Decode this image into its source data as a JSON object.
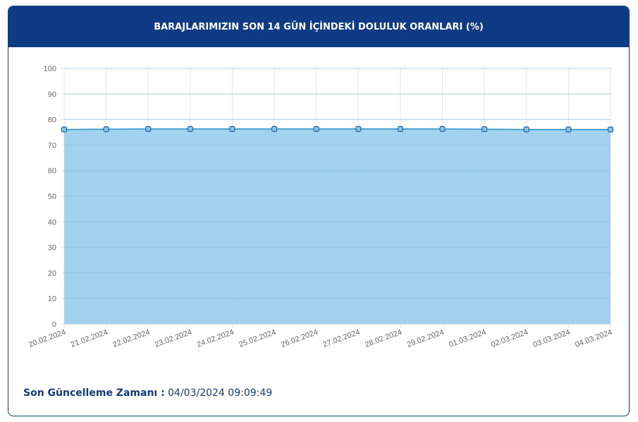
{
  "header": {
    "title": "BARAJLARIMIZIN SON 14 GÜN İÇİNDEKİ DOLULUK ORANLARI (%)"
  },
  "chart_data": {
    "type": "area",
    "categories": [
      "20.02.2024",
      "21.02.2024",
      "22.02.2024",
      "23.02.2024",
      "24.02.2024",
      "25.02.2024",
      "26.02.2024",
      "27.02.2024",
      "28.02.2024",
      "29.02.2024",
      "01.03.2024",
      "02.03.2024",
      "03.03.2024",
      "04.03.2024"
    ],
    "values": [
      76.1,
      76.2,
      76.3,
      76.3,
      76.3,
      76.3,
      76.3,
      76.3,
      76.3,
      76.3,
      76.2,
      76.1,
      76.1,
      76.1
    ],
    "color": "#2b8fcf",
    "fill": "#9dd1ed",
    "marker_color": "#1f5fa8",
    "ylim": [
      0,
      100
    ],
    "yticks": [
      0,
      10,
      20,
      30,
      40,
      50,
      60,
      70,
      80,
      90,
      100
    ],
    "grid": true
  },
  "footer": {
    "label": "Son Güncelleme Zamanı :",
    "value": "04/03/2024 09:09:49"
  }
}
